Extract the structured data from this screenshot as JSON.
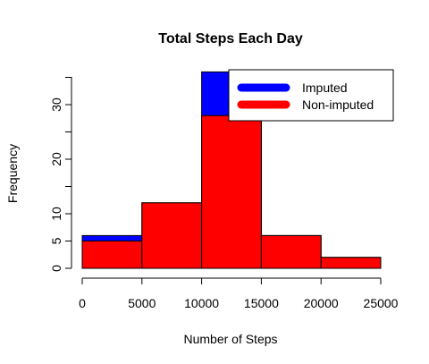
{
  "chart_data": {
    "type": "bar",
    "title": "Total Steps Each Day",
    "xlabel": "Number of Steps",
    "ylabel": "Frequency",
    "xlim": [
      0,
      25000
    ],
    "ylim": [
      0,
      35
    ],
    "x_ticks": [
      "0",
      "5000",
      "10000",
      "15000",
      "20000",
      "25000"
    ],
    "y_ticks": [
      "0",
      "5",
      "10",
      "20",
      "30"
    ],
    "bins": [
      {
        "from": 0,
        "to": 5000
      },
      {
        "from": 5000,
        "to": 10000
      },
      {
        "from": 10000,
        "to": 15000
      },
      {
        "from": 15000,
        "to": 20000
      },
      {
        "from": 20000,
        "to": 25000
      }
    ],
    "series": [
      {
        "name": "Imputed",
        "color": "#0000FF",
        "values": [
          6,
          12,
          36,
          6,
          2
        ]
      },
      {
        "name": "Non-imputed",
        "color": "#FF0000",
        "values": [
          5,
          12,
          28,
          6,
          2
        ]
      }
    ],
    "legend": {
      "placement": "top-right",
      "entries": [
        "Imputed",
        "Non-imputed"
      ]
    },
    "grid": false
  }
}
